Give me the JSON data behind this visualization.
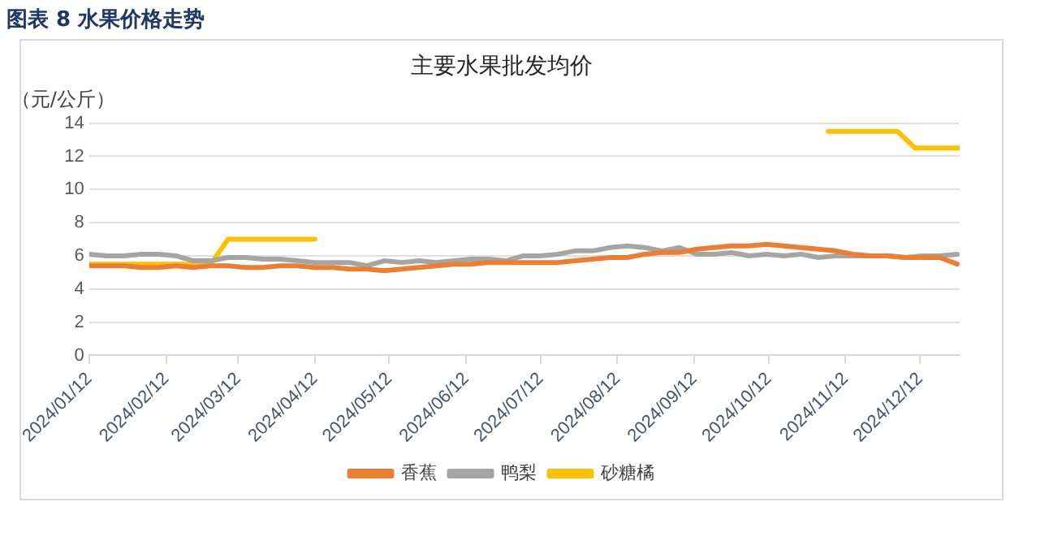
{
  "chart_data": {
    "type": "line",
    "title": "主要水果批发均价",
    "ylabel": "（元/公斤）",
    "annotations": [
      "图表 8 水果价格走势"
    ],
    "x": [
      "2024-01-12",
      "2024-01-19",
      "2024-01-26",
      "2024-02-02",
      "2024-02-09",
      "2024-02-16",
      "2024-02-23",
      "2024-03-01",
      "2024-03-08",
      "2024-03-15",
      "2024-03-22",
      "2024-03-29",
      "2024-04-05",
      "2024-04-12",
      "2024-04-19",
      "2024-04-26",
      "2024-05-03",
      "2024-05-10",
      "2024-05-17",
      "2024-05-24",
      "2024-05-31",
      "2024-06-07",
      "2024-06-14",
      "2024-06-21",
      "2024-06-28",
      "2024-07-05",
      "2024-07-12",
      "2024-07-19",
      "2024-07-26",
      "2024-08-02",
      "2024-08-09",
      "2024-08-16",
      "2024-08-23",
      "2024-08-30",
      "2024-09-06",
      "2024-09-13",
      "2024-09-20",
      "2024-09-27",
      "2024-10-04",
      "2024-10-11",
      "2024-10-18",
      "2024-10-25",
      "2024-11-01",
      "2024-11-08",
      "2024-11-15",
      "2024-11-22",
      "2024-11-29",
      "2024-12-06",
      "2024-12-13",
      "2024-12-20",
      "2024-12-27"
    ],
    "series": [
      {
        "name": "香蕉",
        "color": "#ed7d31",
        "values": [
          5.4,
          5.4,
          5.4,
          5.3,
          5.3,
          5.4,
          5.3,
          5.4,
          5.4,
          5.3,
          5.3,
          5.4,
          5.4,
          5.3,
          5.3,
          5.2,
          5.2,
          5.1,
          5.2,
          5.3,
          5.4,
          5.5,
          5.5,
          5.6,
          5.6,
          5.6,
          5.6,
          5.6,
          5.7,
          5.8,
          5.9,
          5.9,
          6.1,
          6.2,
          6.2,
          6.4,
          6.5,
          6.6,
          6.6,
          6.7,
          6.6,
          6.5,
          6.4,
          6.3,
          6.1,
          6.0,
          6.0,
          5.9,
          5.9,
          5.9,
          5.5
        ]
      },
      {
        "name": "鸭梨",
        "color": "#a5a5a5",
        "values": [
          6.1,
          6.0,
          6.0,
          6.1,
          6.1,
          6.0,
          5.7,
          5.7,
          5.9,
          5.9,
          5.8,
          5.8,
          5.7,
          5.6,
          5.6,
          5.6,
          5.4,
          5.7,
          5.6,
          5.7,
          5.6,
          5.7,
          5.8,
          5.8,
          5.7,
          6.0,
          6.0,
          6.1,
          6.3,
          6.3,
          6.5,
          6.6,
          6.5,
          6.3,
          6.5,
          6.1,
          6.1,
          6.2,
          6.0,
          6.1,
          6.0,
          6.1,
          5.9,
          6.0,
          6.0,
          6.0,
          6.0,
          5.9,
          6.0,
          6.0,
          6.1
        ]
      },
      {
        "name": "砂糖橘",
        "color": "#ffc000",
        "x": [
          "2024-01-12",
          "2024-03-01",
          "2024-03-08",
          "2024-04-12",
          "2024-04-19",
          "2024-11-05",
          "2024-12-03",
          "2024-12-10",
          "2024-12-28"
        ],
        "values": [
          5.5,
          5.5,
          7.0,
          7.0,
          null,
          13.5,
          13.5,
          12.5,
          12.5
        ]
      }
    ],
    "xlim": [
      "2024-01-12",
      "2024-12-28"
    ],
    "xticks": [
      {
        "value": "2024-01-12",
        "label": "2024/01/12"
      },
      {
        "value": "2024-02-12",
        "label": "2024/02/12"
      },
      {
        "value": "2024-03-12",
        "label": "2024/03/12"
      },
      {
        "value": "2024-04-12",
        "label": "2024/04/12"
      },
      {
        "value": "2024-05-12",
        "label": "2024/05/12"
      },
      {
        "value": "2024-06-12",
        "label": "2024/06/12"
      },
      {
        "value": "2024-07-12",
        "label": "2024/07/12"
      },
      {
        "value": "2024-08-12",
        "label": "2024/08/12"
      },
      {
        "value": "2024-09-12",
        "label": "2024/09/12"
      },
      {
        "value": "2024-10-12",
        "label": "2024/10/12"
      },
      {
        "value": "2024-11-12",
        "label": "2024/11/12"
      },
      {
        "value": "2024-12-12",
        "label": "2024/12/12"
      }
    ],
    "ylim": [
      0,
      14
    ],
    "yticks": [
      0,
      2,
      4,
      6,
      8,
      10,
      12,
      14
    ],
    "grid": "y",
    "legend": "bottom",
    "marker": "none",
    "line_style": "solid"
  }
}
